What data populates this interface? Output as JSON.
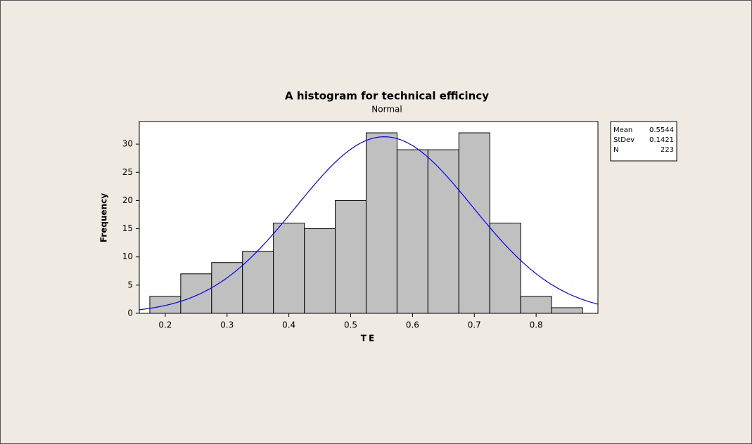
{
  "chart_data": {
    "type": "histogram",
    "title": "A histogram for technical efficincy",
    "subtitle": "Normal",
    "x_label": "TE",
    "y_label": "Frequency",
    "bins": [
      0.175,
      0.225,
      0.275,
      0.325,
      0.375,
      0.425,
      0.475,
      0.525,
      0.575,
      0.625,
      0.675,
      0.725,
      0.775,
      0.825,
      0.875
    ],
    "values": [
      3,
      7,
      9,
      11,
      16,
      15,
      20,
      32,
      29,
      29,
      32,
      16,
      3,
      1
    ],
    "color": "#c0c0c0",
    "xlim": [
      0.158,
      0.9
    ],
    "xticks": [
      0.2,
      0.3,
      0.4,
      0.5,
      0.6,
      0.7,
      0.8
    ],
    "ylim": [
      0,
      34
    ],
    "yticks": [
      0,
      5,
      10,
      15,
      20,
      25,
      30
    ],
    "fit": {
      "color": "#0000ff",
      "stats": [
        {
          "label": "Mean",
          "value": 0.5544
        },
        {
          "label": "StDev",
          "value": 0.1421
        },
        {
          "label": "N",
          "value": 223
        }
      ]
    }
  }
}
